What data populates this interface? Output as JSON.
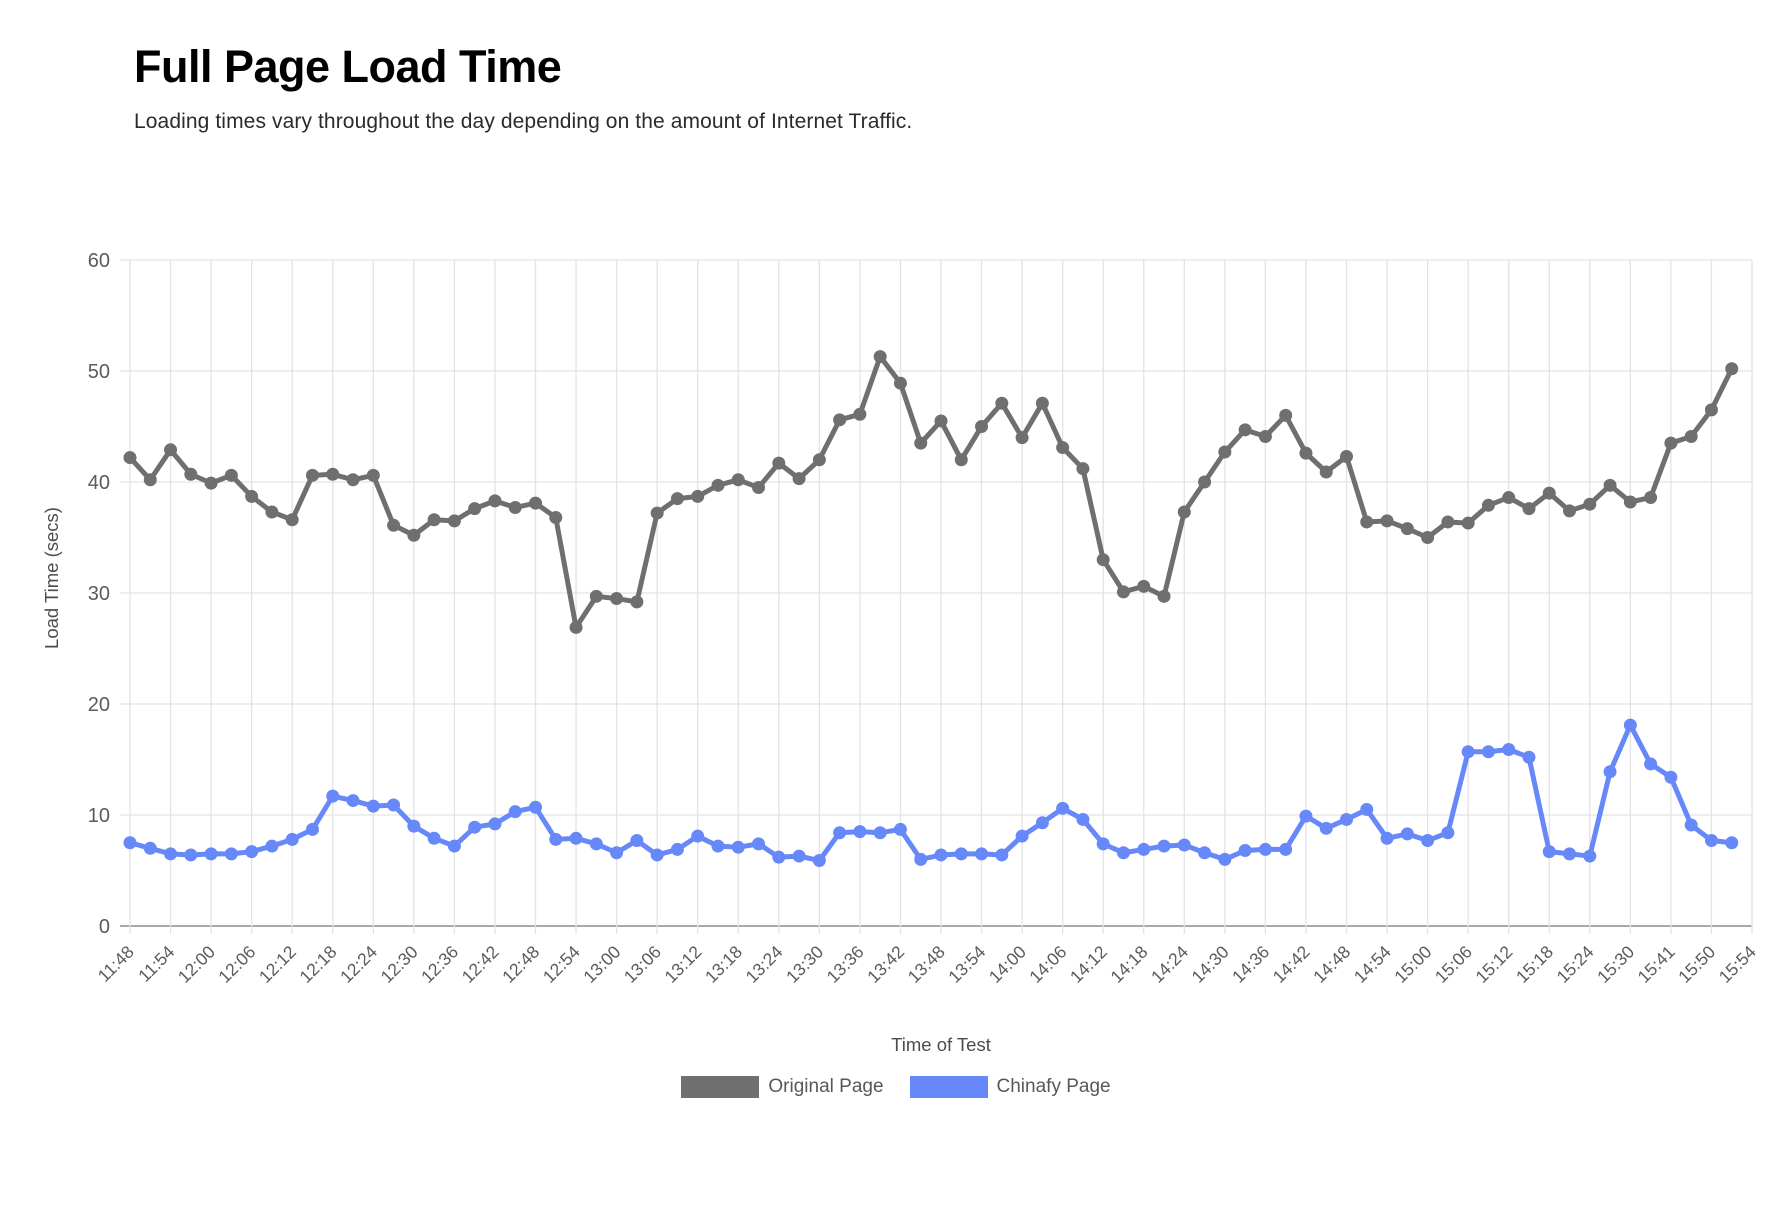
{
  "header": {
    "title": "Full Page Load Time",
    "subtitle": "Loading times vary throughout the day depending on the amount of Internet Traffic."
  },
  "chart_data": {
    "type": "line",
    "title": "Full Page Load Time",
    "xlabel": "Time of Test",
    "ylabel": "Load Time (secs)",
    "ylim": [
      0,
      60
    ],
    "y_ticks": [
      0,
      10,
      20,
      30,
      40,
      50,
      60
    ],
    "grid": true,
    "legend_position": "bottom",
    "x_labels": [
      "11:48",
      "11:54",
      "12:00",
      "12:06",
      "12:12",
      "12:18",
      "12:24",
      "12:30",
      "12:36",
      "12:42",
      "12:48",
      "12:54",
      "13:00",
      "13:06",
      "13:12",
      "13:18",
      "13:24",
      "13:30",
      "13:36",
      "13:42",
      "13:48",
      "13:54",
      "14:00",
      "14:06",
      "14:12",
      "14:18",
      "14:24",
      "14:30",
      "14:36",
      "14:42",
      "14:48",
      "14:54",
      "15:00",
      "15:06",
      "15:12",
      "15:18",
      "15:24",
      "15:30",
      "15:41",
      "15:50",
      "15:54"
    ],
    "points_per_label_interval": 2,
    "colors": {
      "grid_line": "#e3e3e3",
      "axis_line": "#a9a9a9",
      "tick_label": "#595b5d",
      "axis_title": "#4a4c4e"
    },
    "series": [
      {
        "name": "Original Page",
        "color": "#6f6f6f",
        "values": [
          42.2,
          40.2,
          42.9,
          40.7,
          39.9,
          40.6,
          38.7,
          37.3,
          36.6,
          40.6,
          40.7,
          40.2,
          40.6,
          36.1,
          35.2,
          36.6,
          36.5,
          37.6,
          38.3,
          37.7,
          38.1,
          36.8,
          26.9,
          29.7,
          29.5,
          29.2,
          37.2,
          38.5,
          38.7,
          39.7,
          40.2,
          39.5,
          41.7,
          40.3,
          42.0,
          45.6,
          46.1,
          51.3,
          48.9,
          43.5,
          45.5,
          42.0,
          45.0,
          47.1,
          44.0,
          47.1,
          43.1,
          41.2,
          33.0,
          30.1,
          30.6,
          29.7,
          37.3,
          40.0,
          42.7,
          44.7,
          44.1,
          46.0,
          42.6,
          40.9,
          42.3,
          36.4,
          36.5,
          35.8,
          35.0,
          36.4,
          36.3,
          37.9,
          38.6,
          37.6,
          39.0,
          37.4,
          38.0,
          39.7,
          38.2,
          38.6,
          43.5,
          44.1,
          46.5,
          50.2
        ]
      },
      {
        "name": "Chinafy Page",
        "color": "#6688f8",
        "values": [
          7.5,
          7.0,
          6.5,
          6.4,
          6.5,
          6.5,
          6.7,
          7.2,
          7.8,
          8.7,
          11.7,
          11.3,
          10.8,
          10.9,
          9.0,
          7.9,
          7.2,
          8.9,
          9.2,
          10.3,
          10.7,
          7.8,
          7.9,
          7.4,
          6.6,
          7.7,
          6.4,
          6.9,
          8.1,
          7.2,
          7.1,
          7.4,
          6.2,
          6.3,
          5.9,
          8.4,
          8.5,
          8.4,
          8.7,
          6.0,
          6.4,
          6.5,
          6.5,
          6.4,
          8.1,
          9.3,
          10.6,
          9.6,
          7.4,
          6.6,
          6.9,
          7.2,
          7.3,
          6.6,
          6.0,
          6.8,
          6.9,
          6.9,
          9.9,
          8.8,
          9.6,
          10.5,
          7.9,
          8.3,
          7.7,
          8.4,
          15.7,
          15.7,
          15.9,
          15.2,
          6.7,
          6.5,
          6.3,
          13.9,
          18.1,
          14.6,
          13.4,
          9.1,
          7.7,
          7.5
        ]
      }
    ]
  },
  "legend": {
    "items": [
      {
        "label": "Original Page"
      },
      {
        "label": "Chinafy Page"
      }
    ]
  }
}
